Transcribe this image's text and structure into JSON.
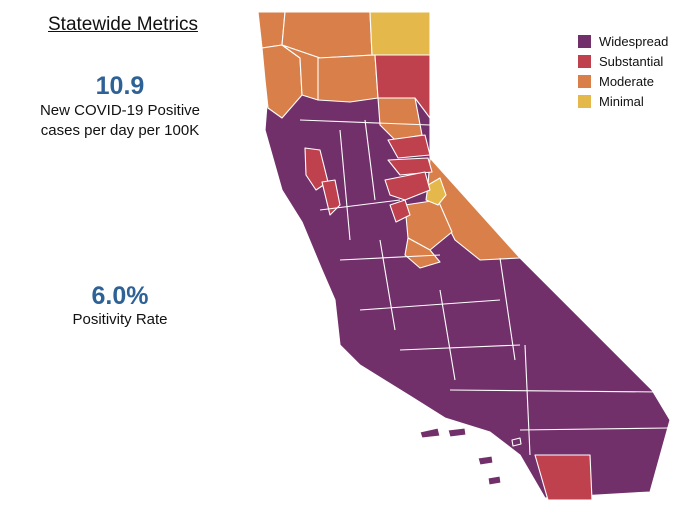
{
  "title": "Statewide Metrics",
  "metrics": [
    {
      "value": "10.9",
      "label_line1": "New COVID-19 Positive",
      "label_line2": "cases per day per 100K"
    },
    {
      "value": "6.0%",
      "label_line1": "Positivity Rate"
    }
  ],
  "legend": [
    {
      "label": "Widespread",
      "color": "#72306a"
    },
    {
      "label": "Substantial",
      "color": "#c0414e"
    },
    {
      "label": "Moderate",
      "color": "#d9804a"
    },
    {
      "label": "Minimal",
      "color": "#e5b84c"
    }
  ],
  "colors": {
    "widespread": "#72306a",
    "substantial": "#c0414e",
    "moderate": "#d9804a",
    "minimal": "#e5b84c"
  }
}
